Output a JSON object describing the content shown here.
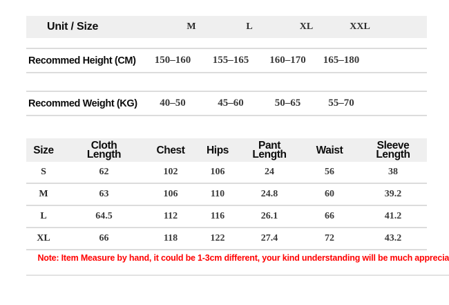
{
  "colors": {
    "header_band": "#efefef",
    "divider": "#dcdcdc",
    "text_primary": "#0c0c0c",
    "number_text": "#3a3a3a",
    "note_red": "#ff0000"
  },
  "unit_table": {
    "header": {
      "label": "Unit / Size",
      "sizes": [
        "M",
        "L",
        "XL",
        "XXL"
      ]
    },
    "rows": [
      {
        "label": "Recommed Height (CM)",
        "values": [
          "150–160",
          "155–165",
          "160–170",
          "165–180"
        ]
      },
      {
        "label": "Recommed Weight (KG)",
        "values": [
          "40–50",
          "45–60",
          "50–65",
          "55–70"
        ]
      }
    ]
  },
  "measurement_table": {
    "headers": [
      "Size",
      "Cloth Length",
      "Chest",
      "Hips",
      "Pant Length",
      "Waist",
      "Sleeve Length"
    ],
    "rows": [
      {
        "size": "S",
        "values": [
          "62",
          "102",
          "106",
          "24",
          "56",
          "38"
        ]
      },
      {
        "size": "M",
        "values": [
          "63",
          "106",
          "110",
          "24.8",
          "60",
          "39.2"
        ]
      },
      {
        "size": "L",
        "values": [
          "64.5",
          "112",
          "116",
          "26.1",
          "66",
          "41.2"
        ]
      },
      {
        "size": "XL",
        "values": [
          "66",
          "118",
          "122",
          "27.4",
          "72",
          "43.2"
        ]
      }
    ]
  },
  "note": "Note: Item Measure by hand, it could be 1-3cm different, your kind understanding will be much appreciated."
}
